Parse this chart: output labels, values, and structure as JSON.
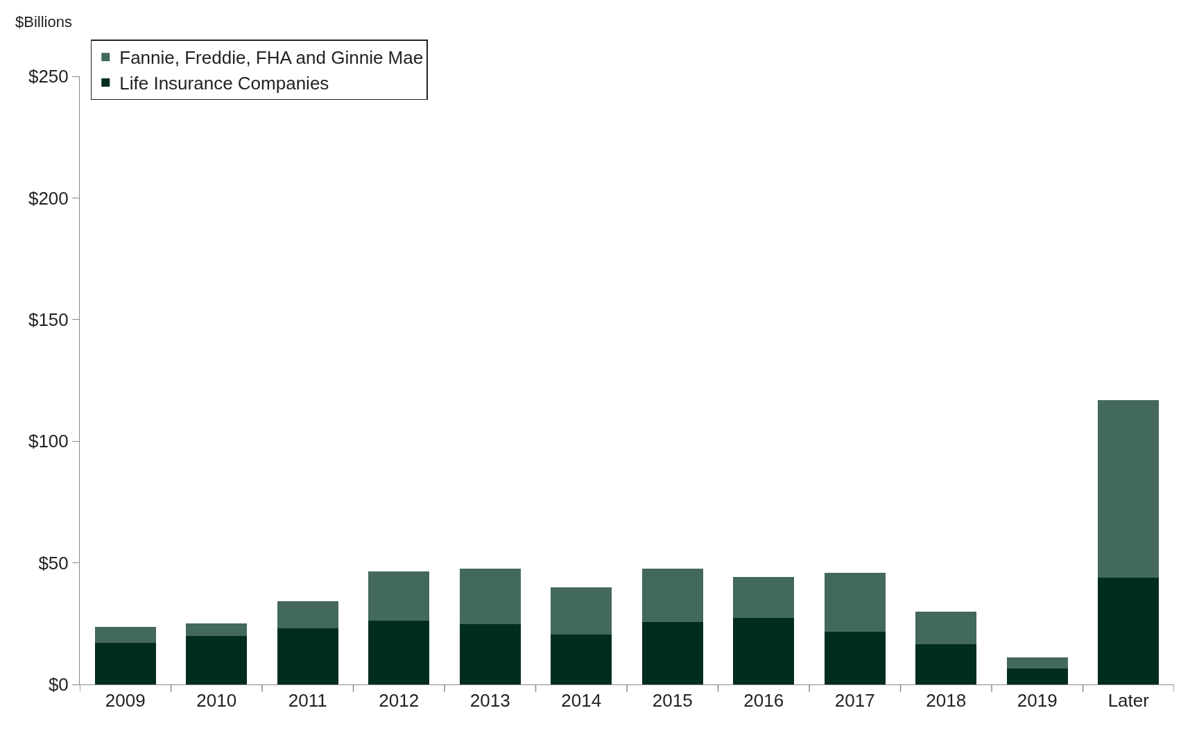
{
  "chart_data": {
    "type": "bar",
    "stacked": true,
    "ylabel": "$Billions",
    "categories": [
      "2009",
      "2010",
      "2011",
      "2012",
      "2013",
      "2014",
      "2015",
      "2016",
      "2017",
      "2018",
      "2019",
      "Later"
    ],
    "series": [
      {
        "name": "Life Insurance Companies",
        "color": "#002d1e",
        "values": [
          17.1,
          19.9,
          23.0,
          26.3,
          24.8,
          20.5,
          25.7,
          27.5,
          21.7,
          16.5,
          6.7,
          43.8
        ]
      },
      {
        "name": "Fannie, Freddie, FHA and Ginnie Mae",
        "color": "#43695a",
        "values": [
          6.5,
          5.2,
          11.3,
          20.2,
          22.9,
          19.3,
          22.0,
          16.6,
          24.2,
          13.5,
          4.3,
          73.1
        ]
      }
    ],
    "ylim": [
      0,
      250
    ],
    "yticks": [
      {
        "value": 0,
        "label": "$0"
      },
      {
        "value": 50,
        "label": "$50"
      },
      {
        "value": 100,
        "label": "$100"
      },
      {
        "value": 150,
        "label": "$150"
      },
      {
        "value": 200,
        "label": "$200"
      },
      {
        "value": 250,
        "label": "$250"
      }
    ],
    "legend": "top left"
  }
}
